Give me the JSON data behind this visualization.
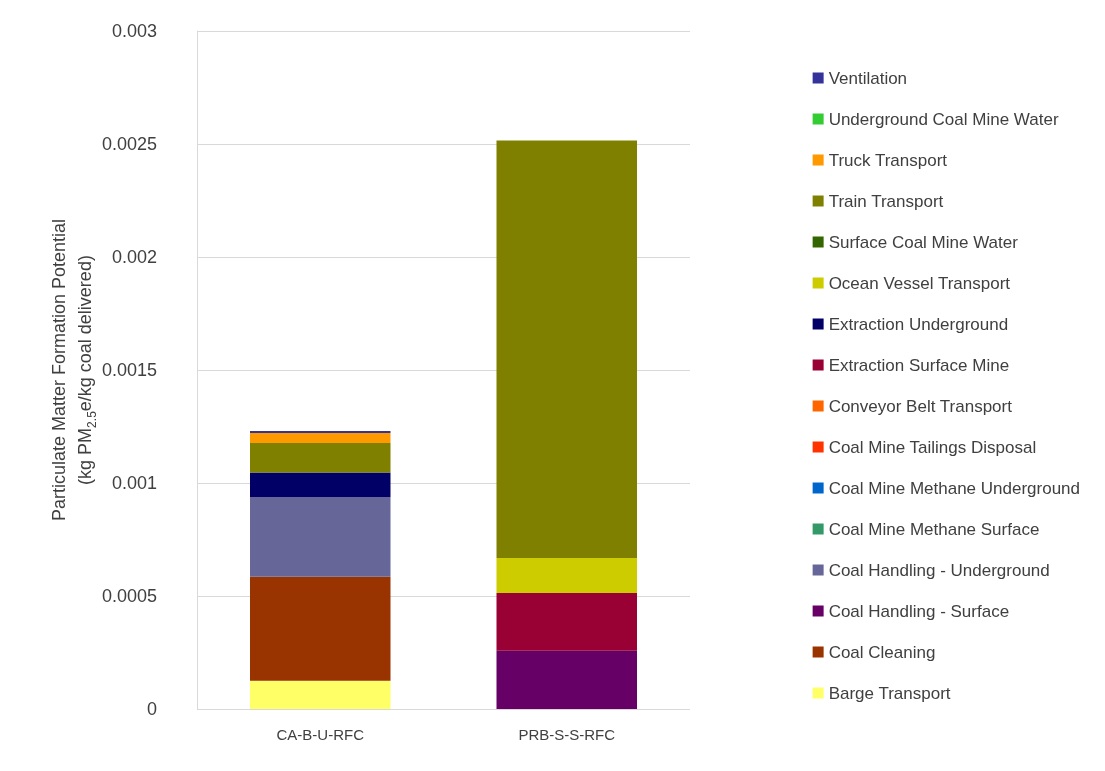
{
  "chart_data": {
    "type": "bar",
    "stacked": true,
    "ylabel": "Particulate Matter Formation Potential\n(kg PM$_{2.5}$e/kg coal delivered)",
    "categories": [
      "CA-B-U-RFC",
      "PRB-S-S-RFC"
    ],
    "ylim": [
      0,
      0.003
    ],
    "yticks": [
      0,
      0.0005,
      0.001,
      0.0015,
      0.002,
      0.0025,
      0.003
    ],
    "grid": "y",
    "legend": "right",
    "series": [
      {
        "name": "Barge Transport",
        "color": "#ffff66",
        "values": [
          0.000125,
          0
        ]
      },
      {
        "name": "Coal Cleaning",
        "color": "#993300",
        "values": [
          0.00046,
          0
        ]
      },
      {
        "name": "Coal Handling - Surface",
        "color": "#660066",
        "values": [
          0,
          0.000258
        ]
      },
      {
        "name": "Coal Handling - Underground",
        "color": "#666699",
        "values": [
          0.000353,
          0
        ]
      },
      {
        "name": "Coal Mine Methane Surface",
        "color": "#339966",
        "values": [
          0,
          0
        ]
      },
      {
        "name": "Coal Mine Methane Underground",
        "color": "#0066cc",
        "values": [
          0,
          0
        ]
      },
      {
        "name": "Coal Mine Tailings Disposal",
        "color": "#ff3300",
        "values": [
          0,
          0
        ]
      },
      {
        "name": "Conveyor Belt Transport",
        "color": "#ff6600",
        "values": [
          0,
          0
        ]
      },
      {
        "name": "Extraction Surface Mine",
        "color": "#990033",
        "values": [
          0,
          0.000255
        ]
      },
      {
        "name": "Extraction Underground",
        "color": "#000066",
        "values": [
          0.000109,
          0
        ]
      },
      {
        "name": "Ocean Vessel Transport",
        "color": "#cccc00",
        "values": [
          0,
          0.000155
        ]
      },
      {
        "name": "Surface Coal Mine Water",
        "color": "#336600",
        "values": [
          0,
          0
        ]
      },
      {
        "name": "Train Transport",
        "color": "#808000",
        "values": [
          0.00013,
          0.001848
        ]
      },
      {
        "name": "Truck Transport",
        "color": "#ff9900",
        "values": [
          4.4e-05,
          0
        ]
      },
      {
        "name": "Underground Coal Mine Water",
        "color": "#33cc33",
        "values": [
          0,
          0
        ]
      },
      {
        "name": "Ventilation",
        "color": "#333399",
        "values": [
          9e-06,
          0
        ]
      }
    ]
  }
}
